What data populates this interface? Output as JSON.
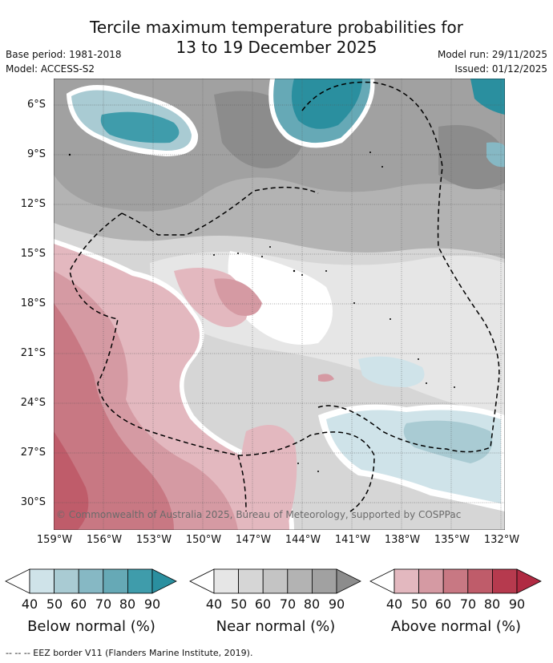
{
  "title_line1": "Tercile maximum temperature probabilities for",
  "title_line2": "13 to 19 December 2025",
  "base_period": "Base period: 1981-2018",
  "model": "Model: ACCESS-S2",
  "model_run": "Model run: 29/11/2025",
  "issued": "Issued: 01/12/2025",
  "lat_labels": [
    "6°S",
    "9°S",
    "12°S",
    "15°S",
    "18°S",
    "21°S",
    "24°S",
    "27°S",
    "30°S"
  ],
  "lon_labels": [
    "159°W",
    "156°W",
    "153°W",
    "150°W",
    "147°W",
    "144°W",
    "141°W",
    "138°W",
    "135°W",
    "132°W"
  ],
  "copyright": "© Commonwealth of Australia 2025, Bureau of Meteorology, supported by COSPPac",
  "colorbars": [
    {
      "label": "Below normal (%)",
      "ticks": [
        "40",
        "50",
        "60",
        "70",
        "80",
        "90"
      ],
      "colors": [
        "#cfe3e9",
        "#a9cbd3",
        "#86b8c4",
        "#66a9b6",
        "#3f9cab",
        "#2a8f9f"
      ]
    },
    {
      "label": "Near normal (%)",
      "ticks": [
        "40",
        "50",
        "60",
        "70",
        "80",
        "90"
      ],
      "colors": [
        "#e6e6e6",
        "#d6d6d6",
        "#c4c4c4",
        "#b3b3b3",
        "#a1a1a1",
        "#8c8c8c"
      ]
    },
    {
      "label": "Above normal (%)",
      "ticks": [
        "40",
        "50",
        "60",
        "70",
        "80",
        "90"
      ],
      "colors": [
        "#e3b8bf",
        "#d59aa3",
        "#c87883",
        "#bf5c6a",
        "#b63a4e",
        "#b02a42"
      ]
    }
  ],
  "footer": "--  --  -- EEZ border V11 (Flanders Marine Institute, 2019)."
}
